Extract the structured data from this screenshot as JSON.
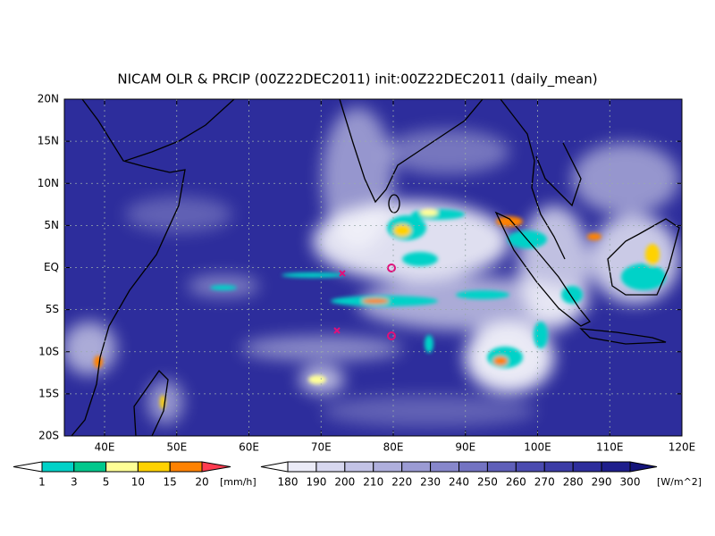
{
  "title": "NICAM OLR & PRCIP (00Z22DEC2011) init:00Z22DEC2011 (daily_mean)",
  "lat_labels": [
    "20N",
    "15N",
    "10N",
    "5N",
    "EQ",
    "5S",
    "10S",
    "15S",
    "20S"
  ],
  "lon_labels": [
    "40E",
    "50E",
    "60E",
    "70E",
    "80E",
    "90E",
    "100E",
    "110E",
    "120E"
  ],
  "precip_colorbar": {
    "labels": [
      1,
      3,
      5,
      10,
      15,
      20
    ],
    "unit": "[mm/h]",
    "colors": [
      "#ffffff",
      "#00d2c8",
      "#00c88c",
      "#ffff96",
      "#ffd200",
      "#ff8200",
      "#ff3c50"
    ]
  },
  "olr_colorbar": {
    "labels": [
      180,
      190,
      200,
      210,
      220,
      230,
      240,
      250,
      260,
      270,
      280,
      290,
      300
    ],
    "unit": "[W/m^2]",
    "colors": [
      "#ffffff",
      "#ebebf7",
      "#d7d7ef",
      "#c3c3e6",
      "#afafdd",
      "#9b9bd4",
      "#8787cb",
      "#7373c2",
      "#5f5fb9",
      "#4b4bb0",
      "#3c3ca6",
      "#2d2d9c",
      "#1e1e8c",
      "#14147a"
    ]
  }
}
